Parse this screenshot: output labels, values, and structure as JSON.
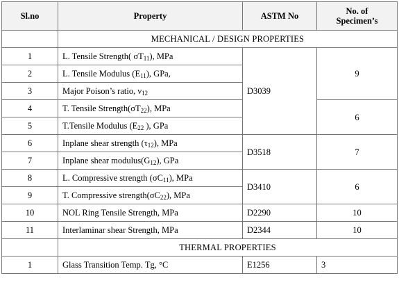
{
  "headers": {
    "slno": "Sl.no",
    "property": "Property",
    "astm": "ASTM No",
    "specimens_line1": "No. of",
    "specimens_line2": "Specimen’s"
  },
  "sections": {
    "mechanical": "MECHANICAL / DESIGN PROPERTIES",
    "thermal": "THERMAL PROPERTIES"
  },
  "rows": [
    {
      "slno": "1",
      "p_pre": "L. Tensile Strength( σT",
      "p_sub": "11",
      "p_post": "), MPa"
    },
    {
      "slno": "2",
      "p_pre": "L. Tensile Modulus (E",
      "p_sub": "11",
      "p_post": "), GPa,"
    },
    {
      "slno": "3",
      "p_pre": "Major Poison’s ratio, ν",
      "p_sub": "12",
      "p_post": ""
    },
    {
      "slno": "4",
      "p_pre": "T. Tensile Strength(σT",
      "p_sub": "22",
      "p_post": "), MPa"
    },
    {
      "slno": "5",
      "p_pre": "T.Tensile Modulus (E",
      "p_sub": "22",
      "p_post": " ), GPa"
    },
    {
      "slno": "6",
      "p_pre": "Inplane shear strength (τ",
      "p_sub": "12",
      "p_post": "), MPa"
    },
    {
      "slno": "7",
      "p_pre": "Inplane shear modulus(G",
      "p_sub": "12",
      "p_post": "), GPa"
    },
    {
      "slno": "8",
      "p_pre": "L. Compressive strength (σC",
      "p_sub": "11",
      "p_post": "), MPa"
    },
    {
      "slno": "9",
      "p_pre": "T. Compressive strength(σC",
      "p_sub": "22",
      "p_post": "), MPa"
    },
    {
      "slno": "10",
      "p_pre": "NOL Ring Tensile Strength, MPa",
      "p_sub": "",
      "p_post": ""
    },
    {
      "slno": "11",
      "p_pre": "Interlaminar shear Strength, MPa",
      "p_sub": "",
      "p_post": ""
    }
  ],
  "astm": {
    "g1": "D3039",
    "g2": "D3518",
    "g3": "D3410",
    "r10": "D2290",
    "r11": "D2344"
  },
  "specimens": {
    "g1a": "9",
    "g1b": "6",
    "g2": "7",
    "g3": "6",
    "r10": "10",
    "r11": "10"
  },
  "thermal_row": {
    "slno": "1",
    "property_pre": "Glass Transition Temp. Tg, °C",
    "astm": "E1256",
    "specimens": "3"
  }
}
